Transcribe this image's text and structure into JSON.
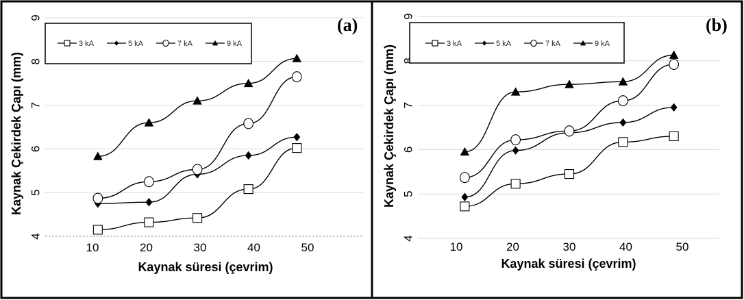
{
  "chart_data": [
    {
      "type": "line",
      "panel_label": "(a)",
      "xlabel": "Kaynak süresi (çevrim)",
      "ylabel": "Kaynak Çekirdek Çapı (mm)",
      "xlim": [
        5,
        57
      ],
      "ylim": [
        4,
        9
      ],
      "xticks": [
        "10",
        "20",
        "30",
        "40",
        "50"
      ],
      "yticks": [
        "4",
        "5",
        "6",
        "7",
        "8",
        "9"
      ],
      "grid": "horizontal",
      "legend_position": "top-left",
      "series": [
        {
          "name": "3 kA",
          "marker": "open-square",
          "x": [
            11,
            20.5,
            29.5,
            39,
            48
          ],
          "y": [
            4.15,
            4.32,
            4.42,
            5.08,
            6.02
          ]
        },
        {
          "name": "5 kA",
          "marker": "filled-diamond",
          "x": [
            11,
            20.5,
            29.5,
            39,
            48
          ],
          "y": [
            4.75,
            4.78,
            5.42,
            5.85,
            6.27
          ]
        },
        {
          "name": "7 kA",
          "marker": "open-circle",
          "x": [
            11,
            20.5,
            29.5,
            39,
            48
          ],
          "y": [
            4.87,
            5.25,
            5.53,
            6.58,
            7.65
          ]
        },
        {
          "name": "9 kA",
          "marker": "filled-triangle",
          "x": [
            11,
            20.5,
            29.5,
            39,
            48
          ],
          "y": [
            5.83,
            6.6,
            7.1,
            7.5,
            8.07
          ]
        }
      ]
    },
    {
      "type": "line",
      "panel_label": "(b)",
      "xlabel": "Kaynak süresi (çevrim)",
      "ylabel": "Kaynak Çekirdek Çapı (mm)",
      "xlim": [
        5,
        57
      ],
      "ylim": [
        4,
        9
      ],
      "xticks": [
        "10",
        "20",
        "30",
        "40",
        "50"
      ],
      "yticks": [
        "4",
        "5",
        "6",
        "7",
        "8",
        "9"
      ],
      "grid": "horizontal",
      "legend_position": "top-left",
      "series": [
        {
          "name": "3 kA",
          "marker": "open-square",
          "x": [
            11.5,
            20.5,
            30,
            39.5,
            48.5
          ],
          "y": [
            4.72,
            5.23,
            5.45,
            6.17,
            6.3
          ]
        },
        {
          "name": "5 kA",
          "marker": "filled-diamond",
          "x": [
            11.5,
            20.5,
            30,
            39.5,
            48.5
          ],
          "y": [
            4.93,
            5.98,
            6.38,
            6.61,
            6.95
          ]
        },
        {
          "name": "7 kA",
          "marker": "open-circle",
          "x": [
            11.5,
            20.5,
            30,
            39.5,
            48.5
          ],
          "y": [
            5.37,
            6.22,
            6.42,
            7.1,
            7.92
          ]
        },
        {
          "name": "9 kA",
          "marker": "filled-triangle",
          "x": [
            11.5,
            20.5,
            30,
            39.5,
            48.5
          ],
          "y": [
            5.95,
            7.3,
            7.47,
            7.53,
            8.13
          ]
        }
      ]
    }
  ]
}
